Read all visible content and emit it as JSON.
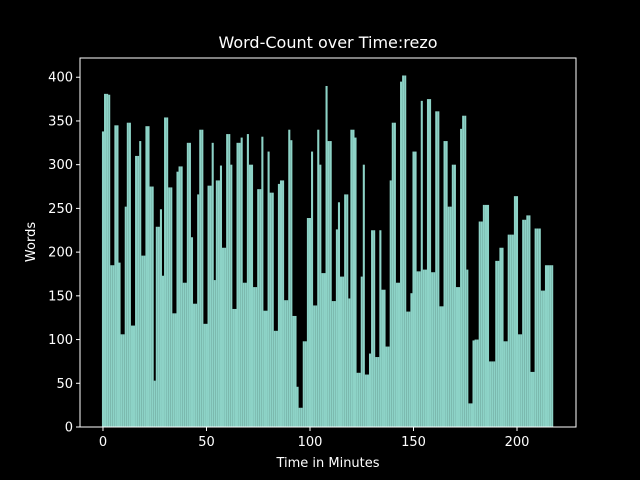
{
  "chart_data": {
    "type": "bar",
    "title": "Word-Count over Time:rezo",
    "x_label": "Time in Minutes",
    "y_label": "Words",
    "color": "#8dd3c7",
    "xlim": [
      -11.1,
      228.5
    ],
    "ylim": [
      0,
      422
    ],
    "xticks": [
      0,
      50,
      100,
      150,
      200
    ],
    "yticks": [
      0,
      50,
      100,
      150,
      200,
      250,
      300,
      350,
      400
    ],
    "x": [
      0,
      1,
      2,
      3,
      4,
      5,
      6,
      7,
      8,
      9,
      10,
      11,
      12,
      13,
      14,
      15,
      16,
      17,
      18,
      19,
      20,
      21,
      22,
      23,
      24,
      25,
      26,
      27,
      28,
      29,
      30,
      31,
      32,
      33,
      34,
      35,
      36,
      37,
      38,
      39,
      40,
      41,
      42,
      43,
      44,
      45,
      46,
      47,
      48,
      49,
      50,
      51,
      52,
      53,
      54,
      55,
      56,
      57,
      58,
      59,
      60,
      61,
      62,
      63,
      64,
      65,
      66,
      67,
      68,
      69,
      70,
      71,
      72,
      73,
      74,
      75,
      76,
      77,
      78,
      79,
      80,
      81,
      82,
      83,
      84,
      85,
      86,
      87,
      88,
      89,
      90,
      91,
      92,
      93,
      94,
      95,
      96,
      97,
      98,
      99,
      100,
      101,
      102,
      103,
      104,
      105,
      106,
      107,
      108,
      109,
      110,
      111,
      112,
      113,
      114,
      115,
      116,
      117,
      118,
      119,
      120,
      121,
      122,
      123,
      124,
      125,
      126,
      127,
      128,
      129,
      130,
      131,
      132,
      133,
      134,
      135,
      136,
      137,
      138,
      139,
      140,
      141,
      142,
      143,
      144,
      145,
      146,
      147,
      148,
      149,
      150,
      151,
      152,
      153,
      154,
      155,
      156,
      157,
      158,
      159,
      160,
      161,
      162,
      163,
      164,
      165,
      166,
      167,
      168,
      169,
      170,
      171,
      172,
      173,
      174,
      175,
      176,
      177,
      178,
      179,
      180,
      181,
      182,
      183,
      184,
      185,
      186,
      187,
      188,
      189,
      190,
      191,
      192,
      193,
      194,
      195,
      196,
      197,
      198,
      199,
      200,
      201,
      202,
      203,
      204,
      205,
      206,
      207,
      208,
      209,
      210,
      211,
      212,
      213,
      214,
      215,
      216,
      217
    ],
    "values": [
      338,
      381,
      381,
      380,
      185,
      185,
      345,
      345,
      188,
      106,
      106,
      252,
      348,
      348,
      116,
      116,
      310,
      310,
      327,
      196,
      196,
      344,
      344,
      275,
      275,
      53,
      229,
      229,
      249,
      173,
      354,
      354,
      274,
      274,
      130,
      130,
      292,
      298,
      298,
      165,
      165,
      325,
      325,
      217,
      141,
      141,
      266,
      340,
      340,
      118,
      118,
      276,
      276,
      325,
      168,
      282,
      282,
      299,
      205,
      205,
      335,
      335,
      300,
      135,
      135,
      325,
      325,
      331,
      165,
      165,
      335,
      300,
      300,
      160,
      160,
      272,
      272,
      332,
      133,
      133,
      315,
      268,
      268,
      110,
      110,
      278,
      282,
      282,
      145,
      145,
      340,
      328,
      127,
      127,
      46,
      22,
      22,
      98,
      98,
      239,
      239,
      315,
      139,
      139,
      340,
      300,
      176,
      176,
      390,
      327,
      327,
      144,
      144,
      226,
      257,
      172,
      172,
      266,
      266,
      147,
      340,
      340,
      331,
      62,
      62,
      172,
      300,
      60,
      60,
      84,
      225,
      225,
      80,
      80,
      225,
      157,
      157,
      92,
      92,
      282,
      348,
      348,
      165,
      165,
      395,
      402,
      402,
      132,
      132,
      153,
      315,
      315,
      178,
      178,
      373,
      180,
      180,
      375,
      375,
      177,
      177,
      361,
      361,
      138,
      138,
      327,
      327,
      252,
      252,
      300,
      300,
      160,
      160,
      341,
      356,
      356,
      180,
      27,
      27,
      99,
      100,
      100,
      235,
      235,
      254,
      254,
      254,
      75,
      75,
      75,
      190,
      190,
      205,
      205,
      98,
      98,
      220,
      220,
      220,
      264,
      264,
      106,
      106,
      237,
      237,
      242,
      242,
      63,
      63,
      227,
      227,
      227,
      156,
      156,
      185,
      185,
      185,
      185
    ]
  }
}
